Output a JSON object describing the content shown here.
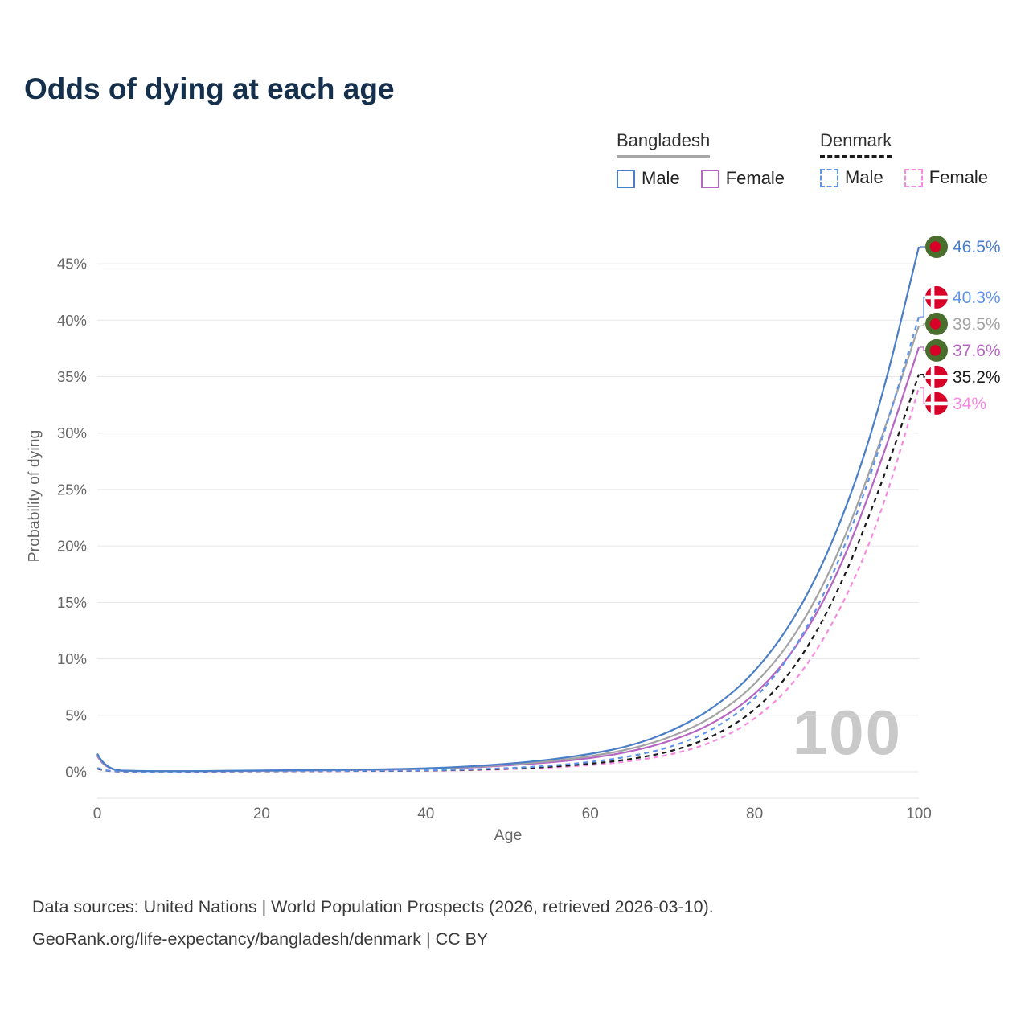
{
  "title": "Odds of dying at each age",
  "legend": {
    "groups": [
      {
        "name": "Bangladesh",
        "style": "solid",
        "underline_color": "#a6a6a6",
        "items": [
          {
            "label": "Male",
            "color": "#4a7ec7"
          },
          {
            "label": "Female",
            "color": "#b666c2"
          }
        ]
      },
      {
        "name": "Denmark",
        "style": "dashed",
        "underline_color": "#1a1a1a",
        "items": [
          {
            "label": "Male",
            "color": "#5e93e8"
          },
          {
            "label": "Female",
            "color": "#f78ae0"
          }
        ]
      }
    ]
  },
  "chart_data": {
    "type": "line",
    "title": "Odds of dying at each age",
    "xlabel": "Age",
    "ylabel": "Probability of dying",
    "xlim": [
      0,
      100
    ],
    "ylim": [
      0,
      47
    ],
    "xticks": [
      0,
      20,
      40,
      60,
      80,
      100
    ],
    "yticks": [
      0,
      5,
      10,
      15,
      20,
      25,
      30,
      35,
      40,
      45
    ],
    "grid": "horizontal",
    "highlight_age": "100",
    "x": [
      0,
      1,
      5,
      10,
      15,
      20,
      25,
      30,
      35,
      40,
      45,
      50,
      55,
      60,
      65,
      70,
      75,
      80,
      85,
      90,
      95,
      100
    ],
    "series": [
      {
        "id": "bd-male",
        "name": "Bangladesh Male",
        "country": "bd",
        "sex": "male",
        "color": "#4a7ec7",
        "dash": "solid",
        "end_value": 46.5,
        "end_label": "46.5%",
        "values": [
          1.6,
          0.15,
          0.06,
          0.05,
          0.08,
          0.12,
          0.15,
          0.18,
          0.22,
          0.3,
          0.45,
          0.7,
          1.05,
          1.55,
          2.3,
          3.6,
          5.6,
          8.7,
          13.6,
          21.0,
          31.5,
          46.5
        ]
      },
      {
        "id": "dk-male",
        "name": "Denmark Male",
        "country": "dk",
        "sex": "male",
        "color": "#5e93e8",
        "dash": "dashed",
        "end_value": 40.3,
        "end_label": "40.3%",
        "values": [
          0.35,
          0.03,
          0.01,
          0.01,
          0.03,
          0.06,
          0.07,
          0.08,
          0.1,
          0.13,
          0.2,
          0.32,
          0.52,
          0.85,
          1.35,
          2.2,
          3.7,
          6.3,
          10.8,
          18.0,
          28.0,
          40.3
        ]
      },
      {
        "id": "bd-total",
        "name": "Bangladesh Both sexes",
        "country": "bd",
        "sex": "both",
        "color": "#a3a3a3",
        "dash": "solid",
        "end_value": 39.5,
        "end_label": "39.5%",
        "values": [
          1.5,
          0.14,
          0.05,
          0.045,
          0.07,
          0.1,
          0.13,
          0.16,
          0.2,
          0.27,
          0.4,
          0.62,
          0.92,
          1.35,
          2.0,
          3.1,
          4.8,
          7.6,
          12.0,
          18.8,
          28.5,
          39.5
        ]
      },
      {
        "id": "bd-female",
        "name": "Bangladesh Female",
        "country": "bd",
        "sex": "female",
        "color": "#b666c2",
        "dash": "solid",
        "end_value": 37.6,
        "end_label": "37.6%",
        "values": [
          1.4,
          0.13,
          0.05,
          0.04,
          0.06,
          0.09,
          0.11,
          0.14,
          0.18,
          0.25,
          0.36,
          0.56,
          0.82,
          1.18,
          1.78,
          2.75,
          4.25,
          6.7,
          10.8,
          17.2,
          26.5,
          37.6
        ]
      },
      {
        "id": "dk-total",
        "name": "Denmark Both sexes",
        "country": "dk",
        "sex": "both",
        "color": "#1a1a1a",
        "dash": "dashed",
        "end_value": 35.2,
        "end_label": "35.2%",
        "values": [
          0.3,
          0.03,
          0.01,
          0.01,
          0.025,
          0.05,
          0.06,
          0.07,
          0.08,
          0.11,
          0.17,
          0.27,
          0.43,
          0.7,
          1.1,
          1.8,
          3.1,
          5.3,
          9.2,
          15.6,
          24.5,
          35.2
        ]
      },
      {
        "id": "dk-female",
        "name": "Denmark Female",
        "country": "dk",
        "sex": "female",
        "color": "#f78ae0",
        "dash": "dashed",
        "end_value": 34.0,
        "end_label": "34%",
        "values": [
          0.28,
          0.02,
          0.01,
          0.01,
          0.02,
          0.03,
          0.04,
          0.05,
          0.07,
          0.09,
          0.14,
          0.22,
          0.36,
          0.58,
          0.93,
          1.52,
          2.6,
          4.55,
          7.9,
          13.6,
          21.8,
          34.0
        ]
      }
    ]
  },
  "flags": {
    "bd": {
      "bg": "#496E2D",
      "dot": "#D80027"
    },
    "dk": {
      "bg": "#D80027",
      "cross": "#FFFFFF"
    }
  },
  "footer": {
    "line1": "Data sources: United Nations | World Population Prospects (2026, retrieved 2026-03-10).",
    "line2": "GeoRank.org/life-expectancy/bangladesh/denmark | CC BY"
  }
}
